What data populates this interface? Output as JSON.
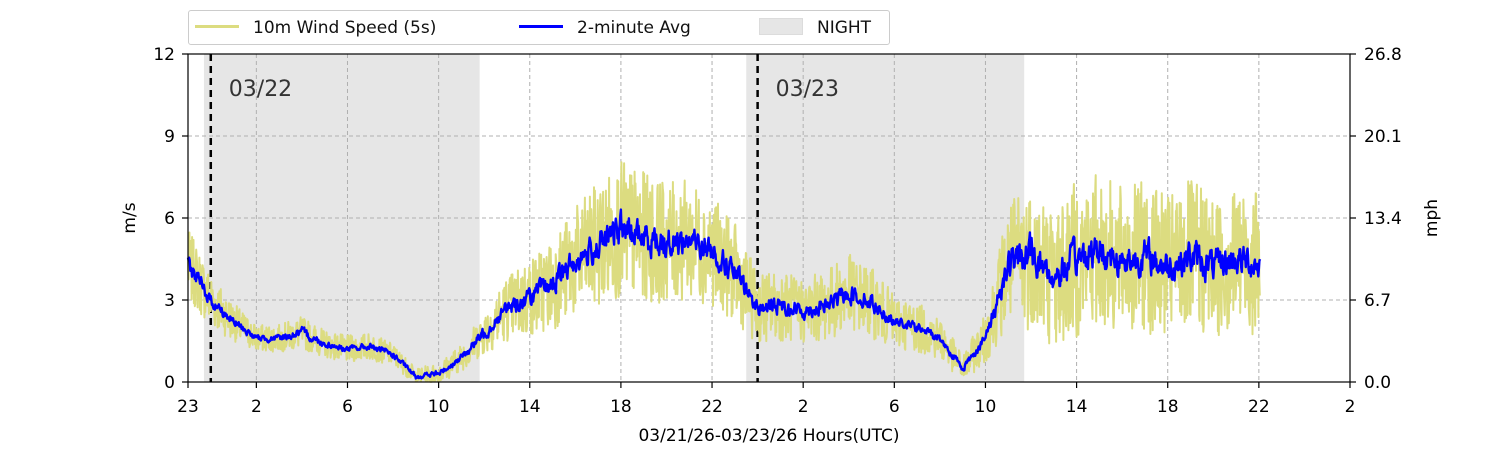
{
  "chart_data": {
    "type": "line",
    "x_title": "03/21/26-03/23/26  Hours(UTC)",
    "y_left_label": "m/s",
    "y_right_label": "mph",
    "x_range_hours": [
      0,
      51
    ],
    "ylim": [
      0,
      12
    ],
    "y_ticks": [
      0,
      3,
      6,
      9,
      12
    ],
    "y_tick_labels": [
      "0",
      "3",
      "6",
      "9",
      "12"
    ],
    "y_right_ticks": [
      0,
      3,
      6,
      9,
      12
    ],
    "y_right_tick_labels": [
      "0.0",
      "6.7",
      "13.4",
      "20.1",
      "26.8"
    ],
    "x_ticks": [
      0,
      3,
      7,
      11,
      15,
      19,
      23,
      27,
      31,
      35,
      39,
      43,
      47,
      51
    ],
    "x_tick_labels": [
      "23",
      "2",
      "6",
      "10",
      "14",
      "18",
      "22",
      "2",
      "6",
      "10",
      "14",
      "18",
      "22",
      "2"
    ],
    "grid": true,
    "legend_position": "top-left",
    "legend": [
      {
        "label": "10m Wind Speed (5s)",
        "kind": "line",
        "color": "#dcdc80"
      },
      {
        "label": "2-minute Avg",
        "kind": "line",
        "color": "#0000ff"
      },
      {
        "label": "NIGHT",
        "kind": "patch",
        "color": "#e6e6e6"
      }
    ],
    "night_periods": [
      [
        0.7,
        12.8
      ],
      [
        24.5,
        36.7
      ]
    ],
    "day_markers": [
      {
        "hour": 1.0,
        "label": "03/22"
      },
      {
        "hour": 25.0,
        "label": "03/23"
      }
    ],
    "series": [
      {
        "name": "10m Wind Speed (5s)",
        "color": "#dcdc80",
        "x": [
          0,
          1,
          2,
          3,
          4,
          5,
          6,
          7,
          8,
          9,
          10,
          11,
          12,
          13,
          14,
          15,
          16,
          17,
          18,
          19,
          20,
          21,
          22,
          23,
          24,
          25,
          26,
          27,
          28,
          29,
          30,
          31,
          32,
          33,
          34,
          35,
          36,
          37,
          38,
          39,
          40,
          41,
          42,
          43,
          44,
          45,
          46,
          47
        ],
        "y": [
          4.3,
          3.0,
          2.2,
          1.6,
          1.6,
          1.8,
          1.4,
          1.2,
          1.3,
          1.0,
          0.2,
          0.3,
          0.9,
          1.8,
          2.7,
          3.1,
          3.6,
          4.4,
          5.0,
          5.6,
          5.3,
          5.1,
          5.2,
          4.8,
          4.0,
          2.7,
          2.8,
          2.6,
          2.8,
          3.3,
          2.9,
          2.2,
          2.0,
          1.6,
          0.5,
          1.6,
          4.3,
          4.7,
          3.8,
          4.5,
          4.8,
          4.4,
          4.6,
          4.2,
          4.6,
          4.2,
          4.5,
          4.3
        ],
        "noise_amplitude": [
          1.3,
          1.0,
          0.7,
          0.5,
          0.5,
          0.6,
          0.5,
          0.5,
          0.5,
          0.4,
          0.3,
          0.4,
          0.5,
          0.8,
          1.2,
          1.5,
          1.7,
          2.0,
          2.3,
          2.5,
          2.4,
          2.2,
          2.2,
          2.0,
          1.8,
          1.3,
          1.3,
          1.2,
          1.3,
          1.4,
          1.3,
          1.0,
          0.9,
          0.8,
          0.5,
          0.9,
          2.3,
          2.8,
          2.6,
          2.9,
          2.9,
          2.7,
          2.8,
          2.6,
          2.8,
          2.6,
          2.7,
          2.6
        ]
      },
      {
        "name": "2-minute Avg",
        "color": "#0000ff",
        "x": [
          0,
          1,
          2,
          3,
          4,
          5,
          6,
          7,
          8,
          9,
          10,
          11,
          12,
          13,
          14,
          15,
          16,
          17,
          18,
          19,
          20,
          21,
          22,
          23,
          24,
          25,
          26,
          27,
          28,
          29,
          30,
          31,
          32,
          33,
          34,
          35,
          36,
          37,
          38,
          39,
          40,
          41,
          42,
          43,
          44,
          45,
          46,
          47
        ],
        "y": [
          4.3,
          3.0,
          2.2,
          1.6,
          1.6,
          1.8,
          1.4,
          1.2,
          1.3,
          1.0,
          0.2,
          0.3,
          0.9,
          1.8,
          2.7,
          3.1,
          3.6,
          4.4,
          5.0,
          5.6,
          5.3,
          5.1,
          5.2,
          4.8,
          4.0,
          2.7,
          2.8,
          2.6,
          2.8,
          3.3,
          2.9,
          2.2,
          2.0,
          1.6,
          0.5,
          1.6,
          4.3,
          4.7,
          3.8,
          4.5,
          4.8,
          4.4,
          4.6,
          4.2,
          4.6,
          4.2,
          4.5,
          4.3
        ],
        "noise_amplitude": [
          0.6,
          0.4,
          0.3,
          0.2,
          0.2,
          0.3,
          0.2,
          0.2,
          0.2,
          0.2,
          0.15,
          0.2,
          0.2,
          0.4,
          0.5,
          0.6,
          0.7,
          0.8,
          0.9,
          1.0,
          1.0,
          0.9,
          0.9,
          0.8,
          0.7,
          0.5,
          0.5,
          0.5,
          0.5,
          0.6,
          0.5,
          0.3,
          0.3,
          0.3,
          0.2,
          0.3,
          1.0,
          1.1,
          1.0,
          1.1,
          1.1,
          1.0,
          1.1,
          1.0,
          1.1,
          1.0,
          1.0,
          1.0
        ]
      }
    ]
  }
}
